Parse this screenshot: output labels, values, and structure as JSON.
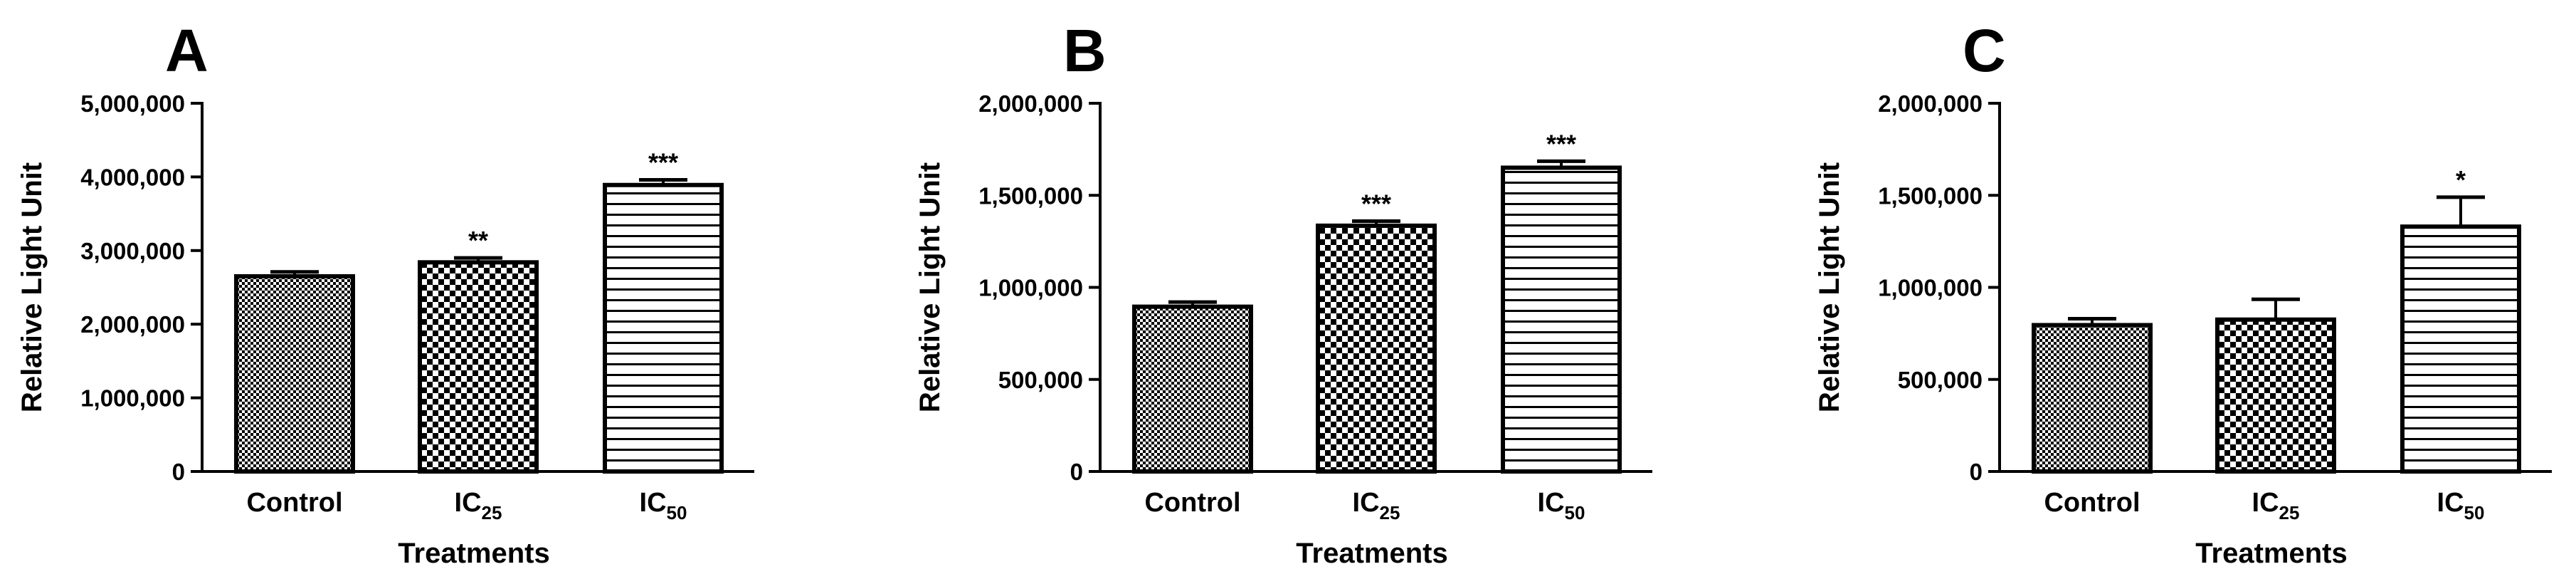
{
  "chart_data": [
    {
      "panel": "A",
      "type": "bar",
      "categories": [
        "Control",
        "IC25",
        "IC50"
      ],
      "category_labels": [
        {
          "main": "Control",
          "sub": ""
        },
        {
          "main": "IC",
          "sub": "25"
        },
        {
          "main": "IC",
          "sub": "50"
        }
      ],
      "values": [
        2650000,
        2840000,
        3890000
      ],
      "errors": [
        60000,
        60000,
        70000
      ],
      "significance": [
        "",
        "**",
        "***"
      ],
      "patterns": [
        "fine-check",
        "coarse-check",
        "horizontal-lines"
      ],
      "ylim": [
        0,
        5000000
      ],
      "yticks": [
        0,
        1000000,
        2000000,
        3000000,
        4000000,
        5000000
      ],
      "ytick_labels": [
        "0",
        "1,000,000",
        "2,000,000",
        "3,000,000",
        "4,000,000",
        "5,000,000"
      ],
      "xlabel": "Treatments",
      "ylabel": "Relative Light Unit"
    },
    {
      "panel": "B",
      "type": "bar",
      "categories": [
        "Control",
        "IC25",
        "IC50"
      ],
      "category_labels": [
        {
          "main": "Control",
          "sub": ""
        },
        {
          "main": "IC",
          "sub": "25"
        },
        {
          "main": "IC",
          "sub": "50"
        }
      ],
      "values": [
        895000,
        1335000,
        1650000
      ],
      "errors": [
        25000,
        25000,
        35000
      ],
      "significance": [
        "",
        "***",
        "***"
      ],
      "patterns": [
        "fine-check",
        "coarse-check",
        "horizontal-lines"
      ],
      "ylim": [
        0,
        2000000
      ],
      "yticks": [
        0,
        500000,
        1000000,
        1500000,
        2000000
      ],
      "ytick_labels": [
        "0",
        "500,000",
        "1,000,000",
        "1,500,000",
        "2,000,000"
      ],
      "xlabel": "Treatments",
      "ylabel": "Relative Light Unit"
    },
    {
      "panel": "C",
      "type": "bar",
      "categories": [
        "Control",
        "IC25",
        "IC50"
      ],
      "category_labels": [
        {
          "main": "Control",
          "sub": ""
        },
        {
          "main": "IC",
          "sub": "25"
        },
        {
          "main": "IC",
          "sub": "50"
        }
      ],
      "values": [
        795000,
        825000,
        1330000
      ],
      "errors": [
        35000,
        110000,
        160000
      ],
      "significance": [
        "",
        "",
        "*"
      ],
      "patterns": [
        "fine-check",
        "coarse-check",
        "horizontal-lines"
      ],
      "ylim": [
        0,
        2000000
      ],
      "yticks": [
        0,
        500000,
        1000000,
        1500000,
        2000000
      ],
      "ytick_labels": [
        "0",
        "500,000",
        "1,000,000",
        "1,500,000",
        "2,000,000"
      ],
      "xlabel": "Treatments",
      "ylabel": "Relative Light Unit"
    }
  ]
}
